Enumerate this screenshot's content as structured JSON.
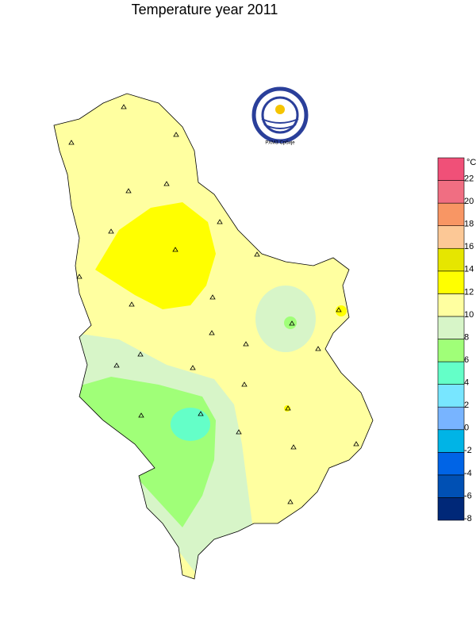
{
  "header": {
    "title": "Temperature  year 2011"
  },
  "logo": {
    "text": "РХМЗ Србије"
  },
  "legend": {
    "unit": "°C",
    "ticks": [
      -8,
      -6,
      -4,
      -2,
      0,
      2,
      4,
      6,
      8,
      10,
      12,
      14,
      16,
      18,
      20,
      22
    ],
    "colors": [
      "#002878",
      "#0050b4",
      "#0064e6",
      "#00b4e6",
      "#78b4ff",
      "#78e6ff",
      "#64ffc8",
      "#a0ff78",
      "#d7f5c8",
      "#ffffa0",
      "#ffff00",
      "#e6e600",
      "#fcc896",
      "#f89664",
      "#f06e82",
      "#f05078"
    ]
  }
}
